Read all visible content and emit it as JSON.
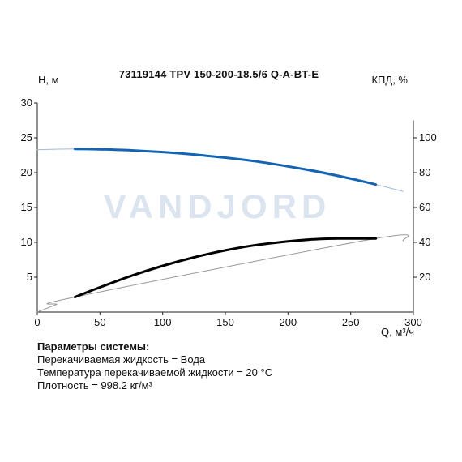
{
  "watermark": "VANDJORD",
  "chart_data": {
    "type": "line",
    "title": "73119144 TPV 150-200-18.5/6 Q-A-BT-E",
    "xlabel": "Q, м³/ч",
    "ylabel_left": "H, м",
    "ylabel_right": "КПД, %",
    "xlim": [
      0,
      300
    ],
    "ylim_left": [
      0,
      30
    ],
    "ylim_right": [
      0,
      120
    ],
    "x_ticks": [
      0,
      50,
      100,
      150,
      200,
      250,
      300
    ],
    "y_left_ticks": [
      5,
      10,
      15,
      20,
      25,
      30
    ],
    "y_right_ticks": [
      20,
      40,
      60,
      80,
      100
    ],
    "grid": false,
    "series": [
      {
        "role": "head-extended",
        "axis": "left",
        "color": "#9bbbe0",
        "x": [
          0,
          30,
          60,
          100,
          150,
          200,
          250,
          270,
          292
        ],
        "y": [
          23.3,
          23.4,
          23.3,
          23.0,
          22.2,
          20.8,
          19.0,
          18.3,
          17.3
        ]
      },
      {
        "role": "head",
        "axis": "left",
        "color": "#1464b4",
        "x": [
          30,
          50,
          75,
          100,
          125,
          150,
          175,
          200,
          225,
          250,
          270
        ],
        "y": [
          23.4,
          23.35,
          23.2,
          22.95,
          22.6,
          22.15,
          21.6,
          20.9,
          20.1,
          19.15,
          18.3
        ]
      },
      {
        "role": "efficiency-extended",
        "axis": "right",
        "color": "#999999",
        "x": [
          0,
          15,
          30,
          270,
          292
        ],
        "y": [
          0,
          4.3,
          8.6,
          42.2,
          41.0
        ]
      },
      {
        "role": "efficiency",
        "axis": "right",
        "color": "#000000",
        "x": [
          30,
          50,
          75,
          100,
          125,
          150,
          175,
          200,
          220,
          240,
          270
        ],
        "y": [
          8.6,
          14.2,
          20.8,
          26.5,
          31.4,
          35.4,
          38.5,
          40.6,
          41.7,
          42.2,
          42.2
        ]
      }
    ]
  },
  "system_params": {
    "heading": "Параметры системы:",
    "lines": [
      "Перекачиваемая жидкость = Вода",
      "Температура перекачиваемой жидкости = 20 °C",
      "Плотность = 998.2 кг/м³"
    ]
  }
}
